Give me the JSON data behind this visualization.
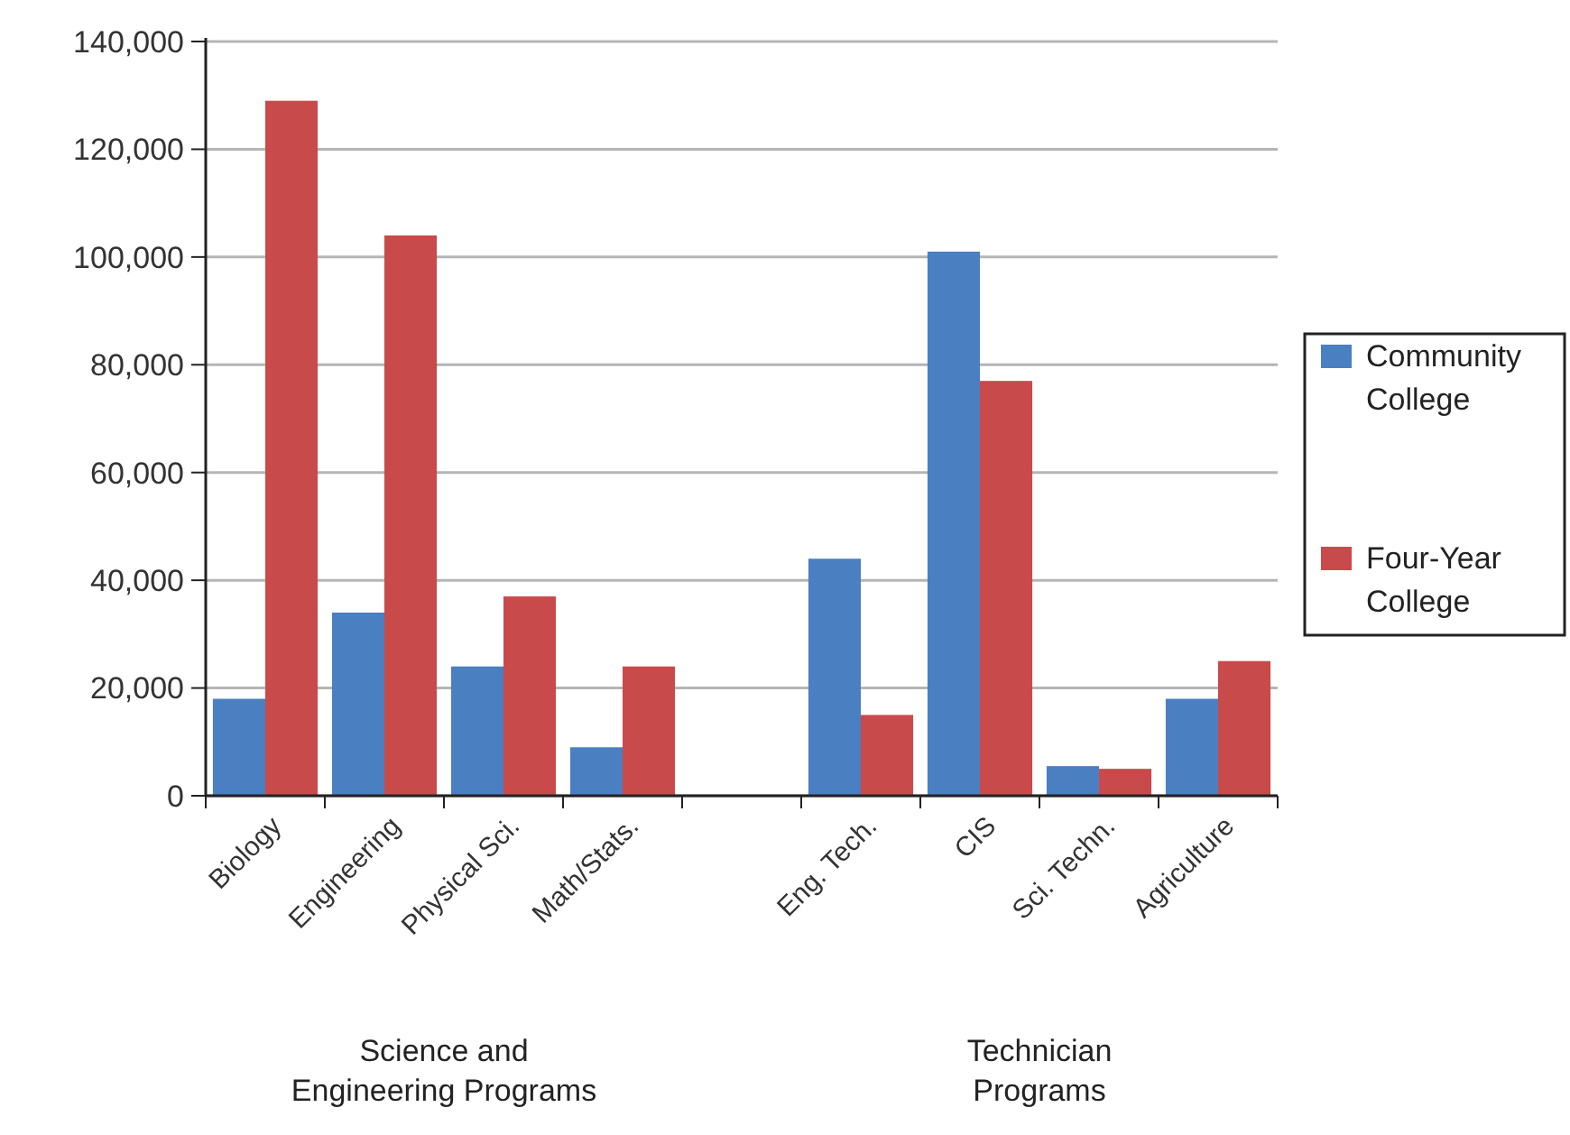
{
  "chart_data": {
    "type": "bar",
    "categories": [
      "Biology",
      "Engineering",
      "Physical Sci.",
      "Math/Stats.",
      null,
      "Eng. Tech.",
      "CIS",
      "Sci. Techn.",
      "Agriculture"
    ],
    "series": [
      {
        "name": "Community College",
        "color": "#4a7fc1",
        "values": [
          18000,
          34000,
          24000,
          9000,
          null,
          44000,
          101000,
          5500,
          18000
        ]
      },
      {
        "name": "Four-Year College",
        "color": "#c94a4a",
        "values": [
          129000,
          104000,
          37000,
          24000,
          null,
          15000,
          77000,
          5000,
          25000
        ]
      }
    ],
    "ylim": [
      0,
      140000
    ],
    "yticks": [
      {
        "value": 0,
        "label": "0"
      },
      {
        "value": 20000,
        "label": "20,000"
      },
      {
        "value": 40000,
        "label": "40,000"
      },
      {
        "value": 60000,
        "label": "60,000"
      },
      {
        "value": 80000,
        "label": "80,000"
      },
      {
        "value": 100000,
        "label": "100,000"
      },
      {
        "value": 120000,
        "label": "120,000"
      },
      {
        "value": 140000,
        "label": "140,000"
      }
    ],
    "grid": "y",
    "legend": "right",
    "annotations": [
      "Science and Engineering Programs",
      "Technician Programs"
    ]
  }
}
